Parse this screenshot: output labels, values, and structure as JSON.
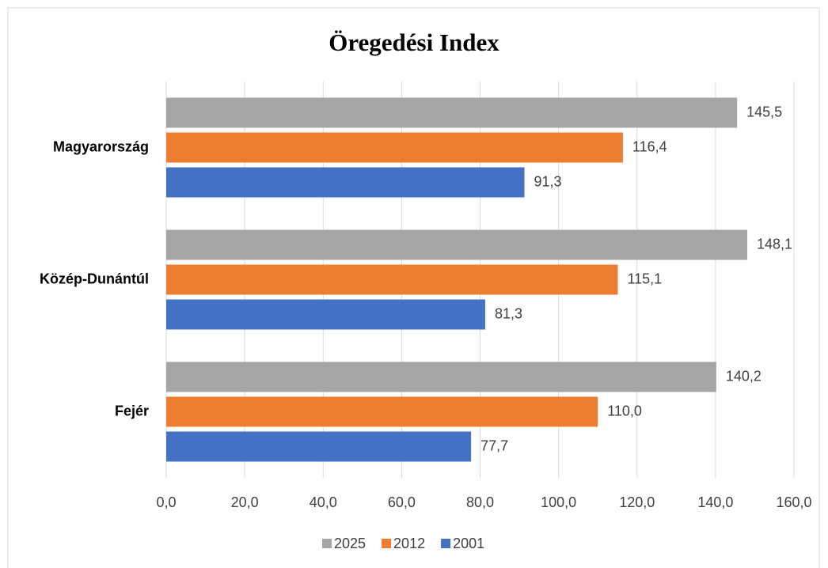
{
  "chart_data": {
    "type": "hbar",
    "title": "Öregedési Index",
    "categories": [
      "Magyarország",
      "Közép-Dunántúl",
      "Fejér"
    ],
    "series": [
      {
        "name": "2025",
        "color": "#a5a5a5",
        "values": [
          145.5,
          148.1,
          140.2
        ],
        "value_labels": [
          "145,5",
          "148,1",
          "140,2"
        ]
      },
      {
        "name": "2012",
        "color": "#ed7d31",
        "values": [
          116.4,
          115.1,
          110.0
        ],
        "value_labels": [
          "116,4",
          "115,1",
          "110,0"
        ]
      },
      {
        "name": "2001",
        "color": "#4472c4",
        "values": [
          91.3,
          81.3,
          77.7
        ],
        "value_labels": [
          "91,3",
          "81,3",
          "77,7"
        ]
      }
    ],
    "xlim": [
      0,
      160
    ],
    "xticks": [
      {
        "value": 0,
        "label": "0,0"
      },
      {
        "value": 20,
        "label": "20,0"
      },
      {
        "value": 40,
        "label": "40,0"
      },
      {
        "value": 60,
        "label": "60,0"
      },
      {
        "value": 80,
        "label": "80,0"
      },
      {
        "value": 100,
        "label": "100,0"
      },
      {
        "value": 120,
        "label": "120,0"
      },
      {
        "value": 140,
        "label": "140,0"
      },
      {
        "value": 160,
        "label": "160,0"
      }
    ],
    "grid": true,
    "legend": "bottom"
  }
}
